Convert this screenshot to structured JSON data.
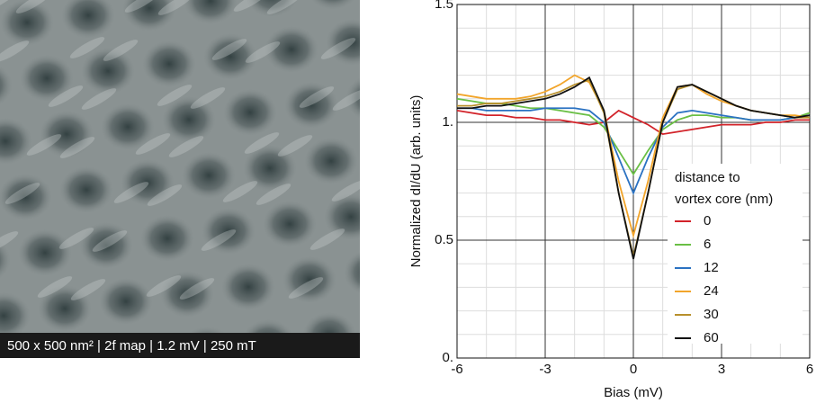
{
  "image_caption": "500 x 500 nm² | 2f map | 1.2 mV | 250 mT",
  "chart_data": {
    "type": "line",
    "x_label": "Bias (mV)",
    "y_label": "Normalized dI/dU (arb. units)",
    "x": [
      -6,
      -5.5,
      -5,
      -4.5,
      -4,
      -3.5,
      -3,
      -2.5,
      -2,
      -1.5,
      -1,
      -0.5,
      0,
      0.5,
      1,
      1.5,
      2,
      2.5,
      3,
      3.5,
      4,
      4.5,
      5,
      5.5,
      6
    ],
    "xlim": [
      -6,
      6
    ],
    "ylim": [
      0,
      1.5
    ],
    "xticks": [
      -6,
      -3,
      0,
      3,
      6
    ],
    "yticks": [
      {
        "value": 0,
        "label": "0."
      },
      0.5,
      {
        "value": 1,
        "label": "1."
      },
      1.5
    ],
    "grid": true,
    "legend_title": [
      "distance to",
      "vortex core (nm)"
    ],
    "series": [
      {
        "name": "0",
        "color": "#d2232a",
        "values": [
          1.05,
          1.04,
          1.03,
          1.03,
          1.02,
          1.02,
          1.01,
          1.01,
          1.0,
          0.99,
          1.0,
          1.05,
          1.02,
          0.99,
          0.95,
          0.96,
          0.97,
          0.98,
          0.99,
          0.99,
          0.99,
          1.0,
          1.0,
          1.01,
          1.01
        ]
      },
      {
        "name": "6",
        "color": "#6abf45",
        "values": [
          1.1,
          1.09,
          1.08,
          1.08,
          1.07,
          1.06,
          1.06,
          1.05,
          1.04,
          1.03,
          0.98,
          0.88,
          0.78,
          0.88,
          0.97,
          1.01,
          1.03,
          1.03,
          1.02,
          1.02,
          1.01,
          1.01,
          1.01,
          1.02,
          1.04
        ]
      },
      {
        "name": "12",
        "color": "#2b72c2",
        "values": [
          1.06,
          1.06,
          1.05,
          1.05,
          1.05,
          1.05,
          1.06,
          1.06,
          1.06,
          1.05,
          1.0,
          0.85,
          0.7,
          0.85,
          0.98,
          1.04,
          1.05,
          1.04,
          1.03,
          1.02,
          1.01,
          1.01,
          1.01,
          1.02,
          1.03
        ]
      },
      {
        "name": "24",
        "color": "#f2a52b",
        "values": [
          1.12,
          1.11,
          1.1,
          1.1,
          1.1,
          1.11,
          1.13,
          1.16,
          1.2,
          1.17,
          1.05,
          0.75,
          0.52,
          0.75,
          1.02,
          1.15,
          1.16,
          1.12,
          1.09,
          1.07,
          1.05,
          1.04,
          1.03,
          1.03,
          1.02
        ]
      },
      {
        "name": "30",
        "color": "#b8902c",
        "values": [
          1.07,
          1.07,
          1.08,
          1.08,
          1.09,
          1.1,
          1.11,
          1.13,
          1.16,
          1.18,
          1.04,
          0.7,
          0.43,
          0.7,
          1.0,
          1.14,
          1.16,
          1.13,
          1.1,
          1.07,
          1.05,
          1.04,
          1.03,
          1.02,
          1.02
        ]
      },
      {
        "name": "60",
        "color": "#111111",
        "values": [
          1.06,
          1.06,
          1.07,
          1.07,
          1.08,
          1.09,
          1.1,
          1.12,
          1.15,
          1.19,
          1.05,
          0.7,
          0.42,
          0.7,
          1.0,
          1.15,
          1.16,
          1.13,
          1.1,
          1.07,
          1.05,
          1.04,
          1.03,
          1.02,
          1.03
        ]
      }
    ]
  }
}
